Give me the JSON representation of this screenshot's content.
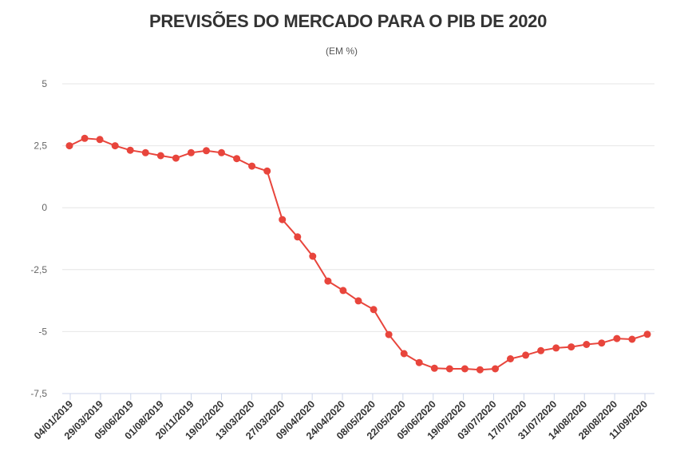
{
  "chart_data": {
    "type": "line",
    "title": "PREVISÕES DO MERCADO PARA O PIB DE 2020",
    "subtitle": "(EM %)",
    "ylim": [
      -7.5,
      5
    ],
    "yticks": [
      5,
      2.5,
      0,
      -2.5,
      -5,
      -7.5
    ],
    "ytick_labels": [
      "5",
      "2,5",
      "0",
      "-2,5",
      "-5",
      "-7,5"
    ],
    "xtick_labels": [
      "04/01/2019",
      "29/03/2019",
      "05/06/2019",
      "01/08/2019",
      "20/11/2019",
      "19/02/2020",
      "13/03/2020",
      "27/03/2020",
      "09/04/2020",
      "24/04/2020",
      "08/05/2020",
      "22/05/2020",
      "05/06/2020",
      "19/06/2020",
      "03/07/2020",
      "17/07/2020",
      "31/07/2020",
      "14/08/2020",
      "28/08/2020",
      "11/09/2020"
    ],
    "grid": true,
    "color": "#e8453c",
    "series": [
      {
        "values": [
          2.5,
          2.8,
          2.75,
          2.5,
          2.32,
          2.22,
          2.1,
          2.0,
          2.22,
          2.3,
          2.22,
          1.98,
          1.68,
          1.48,
          -0.48,
          -1.18,
          -1.96,
          -2.96,
          -3.34,
          -3.76,
          -4.11,
          -5.12,
          -5.89,
          -6.25,
          -6.48,
          -6.5,
          -6.5,
          -6.54,
          -6.5,
          -6.1,
          -5.95,
          -5.77,
          -5.66,
          -5.62,
          -5.52,
          -5.46,
          -5.28,
          -5.31,
          -5.11
        ]
      }
    ]
  }
}
